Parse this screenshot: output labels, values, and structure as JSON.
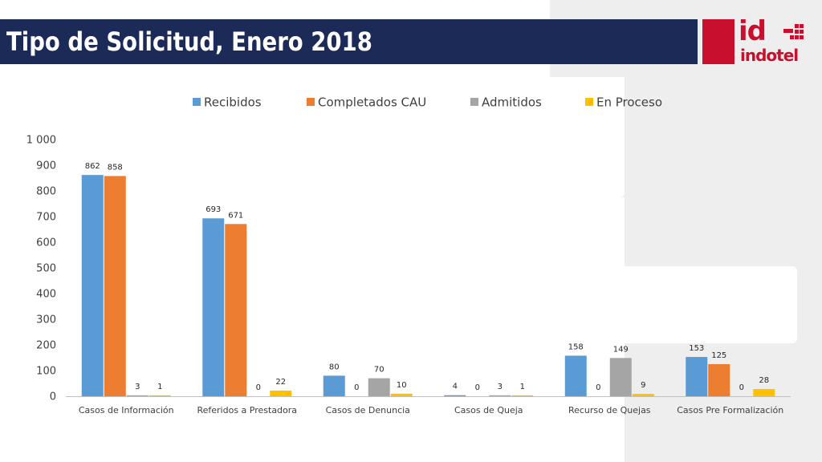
{
  "header": {
    "title": "Tipo de Solicitud, Enero 2018",
    "logo_mark": "id",
    "logo_word": "indotel",
    "accent": "#c8102e",
    "bar_color": "#1b2a56"
  },
  "chart_data": {
    "type": "bar",
    "title": "",
    "xlabel": "",
    "ylabel": "",
    "ylim": [
      0,
      1000
    ],
    "yticks": [
      0,
      100,
      200,
      300,
      400,
      500,
      600,
      700,
      800,
      900,
      1000
    ],
    "ytick_labels": [
      "0",
      "100",
      "200",
      "300",
      "400",
      "500",
      "600",
      "700",
      "800",
      "900",
      "1 000"
    ],
    "grid": false,
    "legend": "top",
    "categories": [
      "Casos de Información",
      "Referidos a Prestadora",
      "Casos de Denuncia",
      "Casos de Queja",
      "Recurso de Quejas",
      "Casos Pre Formalización"
    ],
    "series": [
      {
        "name": "Recibidos",
        "color": "#5b9bd5",
        "values": [
          862,
          693,
          80,
          4,
          158,
          153
        ]
      },
      {
        "name": "Completados CAU",
        "color": "#ed7d31",
        "values": [
          858,
          671,
          0,
          0,
          0,
          125
        ]
      },
      {
        "name": "Admitidos",
        "color": "#a5a5a5",
        "values": [
          3,
          0,
          70,
          3,
          149,
          0
        ]
      },
      {
        "name": "En Proceso",
        "color": "#ffc000",
        "values": [
          1,
          22,
          10,
          1,
          9,
          28
        ]
      }
    ]
  }
}
